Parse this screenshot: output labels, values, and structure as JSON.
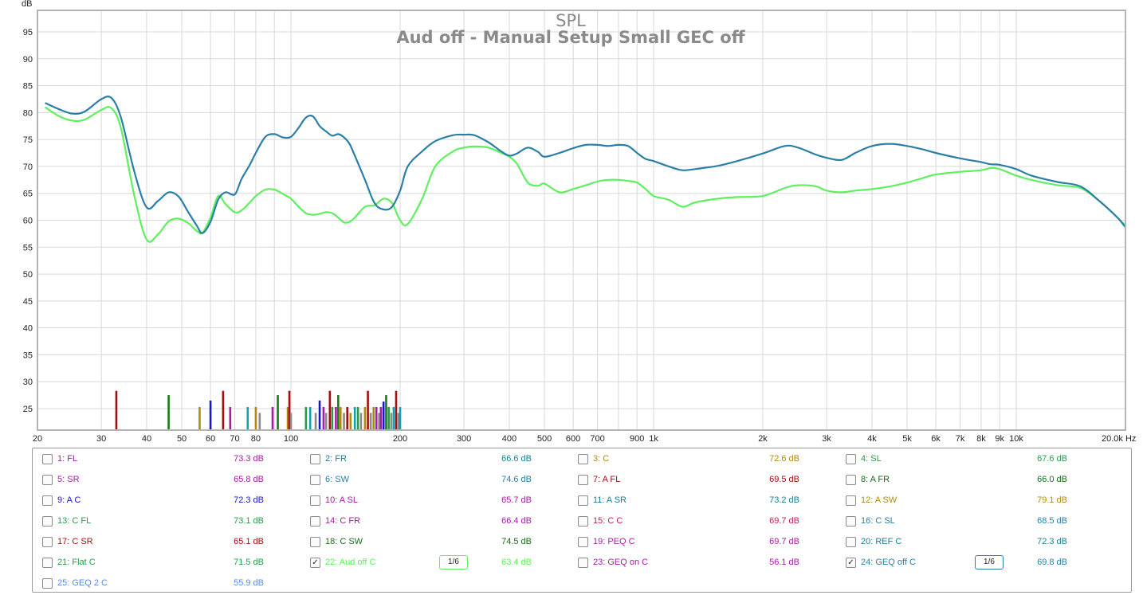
{
  "chart_data": {
    "type": "line",
    "title": "SPL",
    "subtitle": "Aud off - Manual Setup Small GEC off",
    "ylabel": "dB",
    "xlabel": "",
    "x_unit": "Hz",
    "x_scale": "log",
    "xlim": [
      20,
      20000
    ],
    "ylim": [
      21,
      99
    ],
    "grid": true,
    "y_ticks": [
      25,
      30,
      35,
      40,
      45,
      50,
      55,
      60,
      65,
      70,
      75,
      80,
      85,
      90,
      95
    ],
    "x_ticks": [
      {
        "v": 20,
        "label": "20"
      },
      {
        "v": 30,
        "label": "30"
      },
      {
        "v": 40,
        "label": "40"
      },
      {
        "v": 50,
        "label": "50"
      },
      {
        "v": 60,
        "label": "60"
      },
      {
        "v": 70,
        "label": "70"
      },
      {
        "v": 80,
        "label": "80"
      },
      {
        "v": 100,
        "label": "100"
      },
      {
        "v": 200,
        "label": "200"
      },
      {
        "v": 300,
        "label": "300"
      },
      {
        "v": 400,
        "label": "400"
      },
      {
        "v": 500,
        "label": "500"
      },
      {
        "v": 600,
        "label": "600"
      },
      {
        "v": 700,
        "label": "700"
      },
      {
        "v": 900,
        "label": "900"
      },
      {
        "v": 1000,
        "label": "1k"
      },
      {
        "v": 2000,
        "label": "2k"
      },
      {
        "v": 3000,
        "label": "3k"
      },
      {
        "v": 4000,
        "label": "4k"
      },
      {
        "v": 5000,
        "label": "5k"
      },
      {
        "v": 6000,
        "label": "6k"
      },
      {
        "v": 7000,
        "label": "7k"
      },
      {
        "v": 8000,
        "label": "8k"
      },
      {
        "v": 9000,
        "label": "9k"
      },
      {
        "v": 10000,
        "label": "10k"
      },
      {
        "v": 20000,
        "label": "20.0k Hz"
      }
    ],
    "series": [
      {
        "name": "24: GEQ off C",
        "color": "#2a7fa6",
        "x": [
          21,
          23,
          25,
          27,
          30,
          32,
          34,
          37,
          40,
          43,
          46,
          49,
          52,
          55,
          57,
          60,
          63,
          66,
          70,
          73,
          77,
          80,
          85,
          90,
          95,
          100,
          105,
          110,
          115,
          120,
          125,
          130,
          135,
          140,
          145,
          150,
          160,
          170,
          180,
          190,
          200,
          210,
          230,
          250,
          280,
          300,
          320,
          350,
          380,
          400,
          420,
          450,
          480,
          500,
          550,
          600,
          650,
          700,
          750,
          800,
          850,
          900,
          950,
          1000,
          1100,
          1200,
          1300,
          1500,
          1700,
          2000,
          2300,
          2500,
          2800,
          3000,
          3300,
          3600,
          4000,
          4500,
          5000,
          5500,
          6000,
          7000,
          8000,
          8500,
          9000,
          10000,
          11000,
          13000,
          15000,
          17000,
          19000,
          20000
        ],
        "y": [
          81.8,
          80.6,
          79.8,
          80.2,
          82.5,
          82.7,
          79.0,
          69.0,
          62.4,
          63.6,
          65.2,
          64.4,
          61.6,
          59.0,
          57.6,
          59.7,
          63.8,
          65.2,
          64.8,
          67.6,
          70.3,
          72.5,
          75.5,
          76.0,
          75.4,
          75.5,
          77.2,
          79.1,
          79.3,
          77.5,
          76.5,
          75.7,
          76.0,
          75.4,
          74.2,
          72.0,
          67.5,
          63.2,
          62.0,
          62.5,
          65.5,
          70.0,
          72.8,
          74.7,
          75.8,
          75.9,
          75.8,
          74.5,
          72.8,
          72.0,
          72.4,
          73.5,
          72.7,
          71.8,
          72.5,
          73.4,
          74.0,
          74.0,
          73.8,
          74.0,
          73.8,
          72.5,
          71.4,
          71.0,
          70.0,
          69.3,
          69.5,
          70.1,
          71.0,
          72.4,
          73.8,
          73.5,
          72.2,
          71.6,
          71.2,
          72.5,
          73.8,
          74.2,
          73.8,
          73.2,
          72.5,
          71.5,
          70.8,
          70.4,
          70.3,
          69.5,
          68.3,
          67.1,
          66.3,
          63.5,
          60.5,
          58.7
        ]
      },
      {
        "name": "22: Aud off C",
        "color": "#5ef05e",
        "x": [
          21,
          23,
          25,
          27,
          30,
          32,
          34,
          37,
          40,
          43,
          46,
          49,
          52,
          55,
          57,
          60,
          63,
          66,
          70,
          73,
          77,
          80,
          85,
          90,
          95,
          100,
          105,
          110,
          115,
          120,
          125,
          130,
          135,
          140,
          145,
          150,
          160,
          170,
          180,
          190,
          200,
          210,
          230,
          250,
          280,
          300,
          320,
          350,
          380,
          400,
          420,
          450,
          480,
          500,
          550,
          600,
          650,
          700,
          750,
          800,
          850,
          900,
          950,
          1000,
          1100,
          1200,
          1300,
          1500,
          1700,
          2000,
          2300,
          2500,
          2800,
          3000,
          3300,
          3600,
          4000,
          4500,
          5000,
          5500,
          6000,
          7000,
          8000,
          8500,
          9000,
          10000,
          11000,
          13000,
          15000,
          17000,
          19000,
          20000
        ],
        "y": [
          81.0,
          79.3,
          78.5,
          78.7,
          80.5,
          80.8,
          77.0,
          64.5,
          56.4,
          57.4,
          59.8,
          60.3,
          59.5,
          58.0,
          57.7,
          60.5,
          64.5,
          63.0,
          61.5,
          61.8,
          63.3,
          64.5,
          65.7,
          65.7,
          64.9,
          64.0,
          62.5,
          61.3,
          61.0,
          61.2,
          61.5,
          61.3,
          60.5,
          59.6,
          59.7,
          60.5,
          62.5,
          62.8,
          64.0,
          63.2,
          60.0,
          59.3,
          64.0,
          70.0,
          72.8,
          73.5,
          73.7,
          73.5,
          72.5,
          71.8,
          70.5,
          67.0,
          66.4,
          66.8,
          65.2,
          65.8,
          66.5,
          67.2,
          67.5,
          67.5,
          67.3,
          67.0,
          65.8,
          64.5,
          63.8,
          62.5,
          63.3,
          64.0,
          64.3,
          64.5,
          66.0,
          66.5,
          66.3,
          65.5,
          65.2,
          65.5,
          65.8,
          66.3,
          67.0,
          67.8,
          68.5,
          69.0,
          69.3,
          69.7,
          69.5,
          68.3,
          67.5,
          66.5,
          66.0,
          63.5,
          60.5,
          59.0
        ]
      }
    ],
    "markers": [
      {
        "f": 33,
        "db": 28.3,
        "color": "#a01010"
      },
      {
        "f": 46,
        "db": 27.5,
        "color": "#1a7a1a"
      },
      {
        "f": 56,
        "db": 25.3,
        "color": "#b08a10"
      },
      {
        "f": 60,
        "db": 26.5,
        "color": "#1818c0"
      },
      {
        "f": 65,
        "db": 28.3,
        "color": "#a01010"
      },
      {
        "f": 68,
        "db": 25.3,
        "color": "#a020a0"
      },
      {
        "f": 76,
        "db": 25.3,
        "color": "#10a0b0"
      },
      {
        "f": 80,
        "db": 25.3,
        "color": "#b08a10"
      },
      {
        "f": 82,
        "db": 24.2,
        "color": "#8a8a8a"
      },
      {
        "f": 89,
        "db": 25.3,
        "color": "#a020a0"
      },
      {
        "f": 92,
        "db": 27.5,
        "color": "#1a7a1a"
      },
      {
        "f": 98,
        "db": 25.3,
        "color": "#b08a10"
      },
      {
        "f": 99,
        "db": 28.3,
        "color": "#a01010"
      },
      {
        "f": 100,
        "db": 24.2,
        "color": "#8a8a8a"
      },
      {
        "f": 110,
        "db": 25.3,
        "color": "#2a9a4a"
      },
      {
        "f": 113,
        "db": 25.3,
        "color": "#10a0b0"
      },
      {
        "f": 117,
        "db": 24.2,
        "color": "#8a8a8a"
      },
      {
        "f": 120,
        "db": 26.5,
        "color": "#1818c0"
      },
      {
        "f": 123,
        "db": 25.3,
        "color": "#a020a0"
      },
      {
        "f": 125,
        "db": 24.2,
        "color": "#8a8a8a"
      },
      {
        "f": 128,
        "db": 28.3,
        "color": "#a01010"
      },
      {
        "f": 130,
        "db": 25.3,
        "color": "#2a9a4a"
      },
      {
        "f": 133,
        "db": 25.3,
        "color": "#a020a0"
      },
      {
        "f": 135,
        "db": 27.5,
        "color": "#1a7a1a"
      },
      {
        "f": 137,
        "db": 25.3,
        "color": "#b08a10"
      },
      {
        "f": 140,
        "db": 24.2,
        "color": "#8a8a8a"
      },
      {
        "f": 143,
        "db": 25.3,
        "color": "#a01010"
      },
      {
        "f": 146,
        "db": 24.2,
        "color": "#b08a10"
      },
      {
        "f": 150,
        "db": 25.3,
        "color": "#10a0b0"
      },
      {
        "f": 153,
        "db": 25.3,
        "color": "#2a9a4a"
      },
      {
        "f": 156,
        "db": 24.2,
        "color": "#8a8a8a"
      },
      {
        "f": 160,
        "db": 25.3,
        "color": "#b08a10"
      },
      {
        "f": 163,
        "db": 28.3,
        "color": "#a01010"
      },
      {
        "f": 166,
        "db": 24.2,
        "color": "#8a8a8a"
      },
      {
        "f": 169,
        "db": 25.3,
        "color": "#b08a10"
      },
      {
        "f": 172,
        "db": 25.3,
        "color": "#a020a0"
      },
      {
        "f": 175,
        "db": 24.2,
        "color": "#8a8a8a"
      },
      {
        "f": 177,
        "db": 25.3,
        "color": "#a020a0"
      },
      {
        "f": 180,
        "db": 26.3,
        "color": "#1818c0"
      },
      {
        "f": 183,
        "db": 27.5,
        "color": "#1a7a1a"
      },
      {
        "f": 186,
        "db": 25.3,
        "color": "#2a9a4a"
      },
      {
        "f": 189,
        "db": 24.2,
        "color": "#8a8a8a"
      },
      {
        "f": 192,
        "db": 25.3,
        "color": "#10a0b0"
      },
      {
        "f": 195,
        "db": 28.3,
        "color": "#a01010"
      },
      {
        "f": 198,
        "db": 24.2,
        "color": "#8a8a8a"
      },
      {
        "f": 200,
        "db": 25.3,
        "color": "#10a0b0"
      }
    ]
  },
  "legend": [
    {
      "label": "1: FL",
      "value": "73.3 dB",
      "color": "#a020a0",
      "checked": false
    },
    {
      "label": "2: FR",
      "value": "66.6 dB",
      "color": "#1a8090",
      "checked": false
    },
    {
      "label": "3: C",
      "value": "72.6 dB",
      "color": "#b08a10",
      "checked": false
    },
    {
      "label": "4: SL",
      "value": "67.6 dB",
      "color": "#2a9a4a",
      "checked": false
    },
    {
      "label": "5: SR",
      "value": "65.8 dB",
      "color": "#a020a0",
      "checked": false
    },
    {
      "label": "6: SW",
      "value": "74.6 dB",
      "color": "#2a7fa6",
      "checked": false
    },
    {
      "label": "7: A FL",
      "value": "69.5 dB",
      "color": "#a01010",
      "checked": false
    },
    {
      "label": "8: A FR",
      "value": "66.0 dB",
      "color": "#1a6a1a",
      "checked": false
    },
    {
      "label": "9: A C",
      "value": "72.3 dB",
      "color": "#1818c0",
      "checked": false
    },
    {
      "label": "10: A SL",
      "value": "65.7 dB",
      "color": "#a020a0",
      "checked": false
    },
    {
      "label": "11: A SR",
      "value": "73.2 dB",
      "color": "#1a8090",
      "checked": false
    },
    {
      "label": "12: A SW",
      "value": "79.1 dB",
      "color": "#b08a10",
      "checked": false
    },
    {
      "label": "13: C FL",
      "value": "73.1 dB",
      "color": "#2a9a4a",
      "checked": false
    },
    {
      "label": "14: C FR",
      "value": "66.4 dB",
      "color": "#a020a0",
      "checked": false
    },
    {
      "label": "15: C C",
      "value": "69.7 dB",
      "color": "#c02060",
      "checked": false
    },
    {
      "label": "16: C SL",
      "value": "68.5 dB",
      "color": "#2a7fa6",
      "checked": false
    },
    {
      "label": "17: C SR",
      "value": "65.1 dB",
      "color": "#a01010",
      "checked": false
    },
    {
      "label": "18: C SW",
      "value": "74.5 dB",
      "color": "#1a6a1a",
      "checked": false
    },
    {
      "label": "19: PEQ C",
      "value": "69.7 dB",
      "color": "#a020a0",
      "checked": false
    },
    {
      "label": "20: REF C",
      "value": "72.3 dB",
      "color": "#1a8090",
      "checked": false
    },
    {
      "label": "21: Flat C",
      "value": "71.5 dB",
      "color": "#2a9a4a",
      "checked": false
    },
    {
      "label": "22: Aud off C",
      "value": "63.4 dB",
      "color": "#5ef05e",
      "checked": true,
      "smoothing": "1/6"
    },
    {
      "label": "23: GEQ on C",
      "value": "56.1 dB",
      "color": "#a020a0",
      "checked": false
    },
    {
      "label": "24: GEQ off C",
      "value": "69.8 dB",
      "color": "#2a7fa6",
      "checked": true,
      "smoothing": "1/6"
    },
    {
      "label": "25: GEQ 2 C",
      "value": "55.9 dB",
      "color": "#5a8ae0",
      "checked": false
    }
  ]
}
